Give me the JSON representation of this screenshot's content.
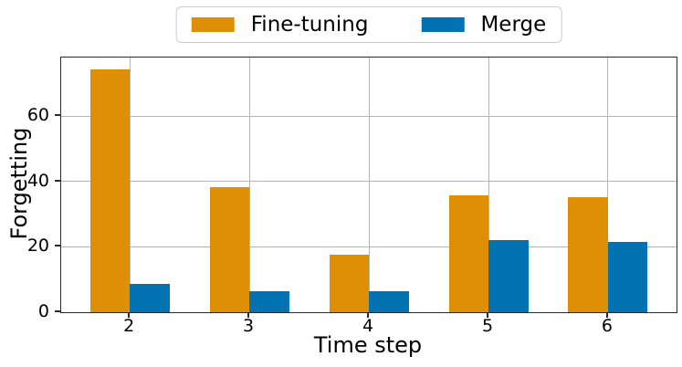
{
  "chart_data": {
    "type": "bar",
    "title": "",
    "xlabel": "Time step",
    "ylabel": "Forgetting",
    "categories": [
      "2",
      "3",
      "4",
      "5",
      "6"
    ],
    "series": [
      {
        "name": "Fine-tuning",
        "color": "#DE8F05",
        "values": [
          74.3,
          38.2,
          17.6,
          35.7,
          35.2
        ]
      },
      {
        "name": "Merge",
        "color": "#0173B2",
        "values": [
          8.6,
          6.5,
          6.3,
          22.1,
          21.4
        ]
      }
    ],
    "ylim": [
      0,
      78
    ],
    "yticks": [
      0,
      20,
      40,
      60
    ],
    "grid": "both",
    "gridline_color": "#b4b4b4",
    "spine_color": "#2b2b2b",
    "legend_position": "top-center",
    "background": "#ffffff"
  }
}
